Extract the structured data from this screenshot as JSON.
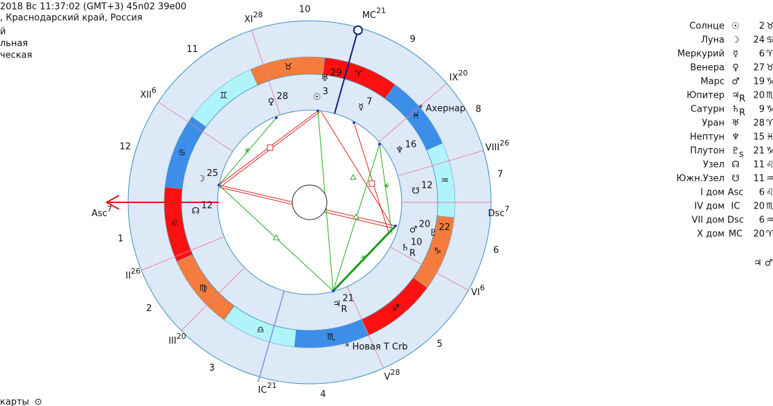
{
  "header": {
    "lines": [
      "2018  Вс  11:37:02 (GMT+3) 45n02  39e00",
      ", Краснодарский край, Россия",
      "й",
      "льная",
      "ческая"
    ]
  },
  "wheel": {
    "house_numbers": [
      "1",
      "2",
      "3",
      "4",
      "5",
      "6",
      "7",
      "8",
      "9",
      "10",
      "11",
      "12"
    ],
    "cusps": [
      {
        "label": "Asc",
        "degree": "7"
      },
      {
        "label": "II",
        "degree": "26"
      },
      {
        "label": "III",
        "degree": "20"
      },
      {
        "label": "IC",
        "degree": "21"
      },
      {
        "label": "V",
        "degree": "28"
      },
      {
        "label": "VI",
        "degree": "6"
      },
      {
        "label": "Dsc",
        "degree": "7"
      },
      {
        "label": "VIII",
        "degree": "26"
      },
      {
        "label": "IX",
        "degree": "20"
      },
      {
        "label": "MC",
        "degree": "21"
      },
      {
        "label": "XI",
        "degree": "28"
      },
      {
        "label": "XII",
        "degree": "6"
      }
    ],
    "signs": [
      "♈",
      "♉",
      "♊",
      "♋",
      "♌",
      "♍",
      "♎",
      "♏",
      "♐",
      "♑",
      "♒",
      "♓"
    ],
    "planets": [
      {
        "glyph": "☉",
        "degree": "3"
      },
      {
        "glyph": "☿",
        "degree": "7"
      },
      {
        "glyph": "♀",
        "degree": "28"
      },
      {
        "glyph": "♅",
        "degree": "29"
      },
      {
        "glyph": "♆",
        "degree": "16"
      },
      {
        "glyph": "☋",
        "degree": "12"
      },
      {
        "glyph": "☽",
        "degree": "25"
      },
      {
        "glyph": "☊",
        "degree": "12"
      },
      {
        "glyph": "♂",
        "degree": "20"
      },
      {
        "glyph": "♇",
        "degree": "22"
      },
      {
        "glyph": "♄",
        "sub": "R",
        "degree": "10"
      },
      {
        "glyph": "♃",
        "sub": "R",
        "degree": "21"
      }
    ],
    "stars": [
      "* Ахернар",
      "* Новая Т Crb"
    ]
  },
  "table": {
    "rows": [
      {
        "name": "Солнце",
        "glyph": "☉",
        "degree": "2",
        "sign": "♉"
      },
      {
        "name": "Луна",
        "glyph": "☽",
        "degree": "24",
        "sign": "♋"
      },
      {
        "name": "Меркурий",
        "glyph": "☿",
        "degree": "6",
        "sign": "♈"
      },
      {
        "name": "Венера",
        "glyph": "♀",
        "degree": "27",
        "sign": "♉"
      },
      {
        "name": "Марс",
        "glyph": "♂",
        "degree": "19",
        "sign": "♑"
      },
      {
        "name": "Юпитер",
        "glyph": "♃",
        "sub": "R",
        "degree": "20",
        "sign": "♏"
      },
      {
        "name": "Сатурн",
        "glyph": "♄",
        "sub": "R",
        "degree": "9",
        "sign": "♑"
      },
      {
        "name": "Уран",
        "glyph": "♅",
        "degree": "28",
        "sign": "♈"
      },
      {
        "name": "Нептун",
        "glyph": "♆",
        "degree": "15",
        "sign": "♓"
      },
      {
        "name": "Плутон",
        "glyph": "♇",
        "sub": "s",
        "degree": "21",
        "sign": "♑"
      },
      {
        "name": "Узел",
        "glyph": "☊",
        "degree": "11",
        "sign": "♌"
      },
      {
        "name": "Южн.Узел",
        "glyph": "☋",
        "degree": "11",
        "sign": "♒"
      },
      {
        "name": "I дом",
        "glyph": "Asc",
        "degree": "6",
        "sign": "♌"
      },
      {
        "name": "IV дом",
        "glyph": "IC",
        "degree": "20",
        "sign": "♏"
      },
      {
        "name": "VII дом",
        "glyph": "Dsc",
        "degree": "6",
        "sign": "♒"
      },
      {
        "name": "X дом",
        "glyph": "MC",
        "degree": "20",
        "sign": "♈"
      }
    ],
    "extra": "♃ ♂"
  },
  "footer": {
    "text": "карты",
    "glyph": "⊙"
  }
}
